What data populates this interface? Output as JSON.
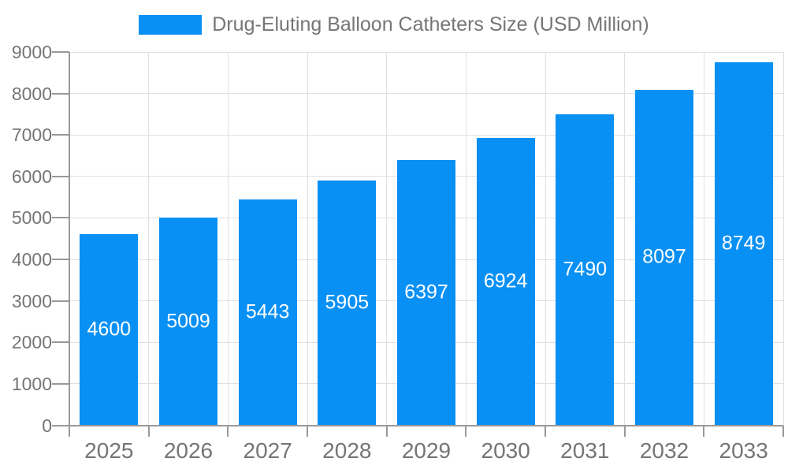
{
  "legend": {
    "label": "Drug-Eluting Balloon Catheters Size (USD Million)",
    "swatch_icon": "legend-swatch"
  },
  "chart_data": {
    "type": "bar",
    "title": "Drug-Eluting Balloon Catheters Size (USD Million)",
    "categories": [
      "2025",
      "2026",
      "2027",
      "2028",
      "2029",
      "2030",
      "2031",
      "2032",
      "2033"
    ],
    "values": [
      4600,
      5009,
      5443,
      5905,
      6397,
      6924,
      7490,
      8097,
      8749
    ],
    "series_name": "Drug-Eluting Balloon Catheters Size (USD Million)",
    "xlabel": "",
    "ylabel": "",
    "ylim": [
      0,
      9000
    ],
    "ytick_step": 1000,
    "yticks": [
      0,
      1000,
      2000,
      3000,
      4000,
      5000,
      6000,
      7000,
      8000,
      9000
    ],
    "grid": true,
    "legend_position": "top-center",
    "value_labels": "inside-bar-centered"
  },
  "colors": {
    "bar": "#0990f4",
    "axis_text": "#757575",
    "grid_line": "#e0e0e0",
    "axis_line": "#999999",
    "background": "#ffffff",
    "bar_label_text": "#ffffff"
  }
}
